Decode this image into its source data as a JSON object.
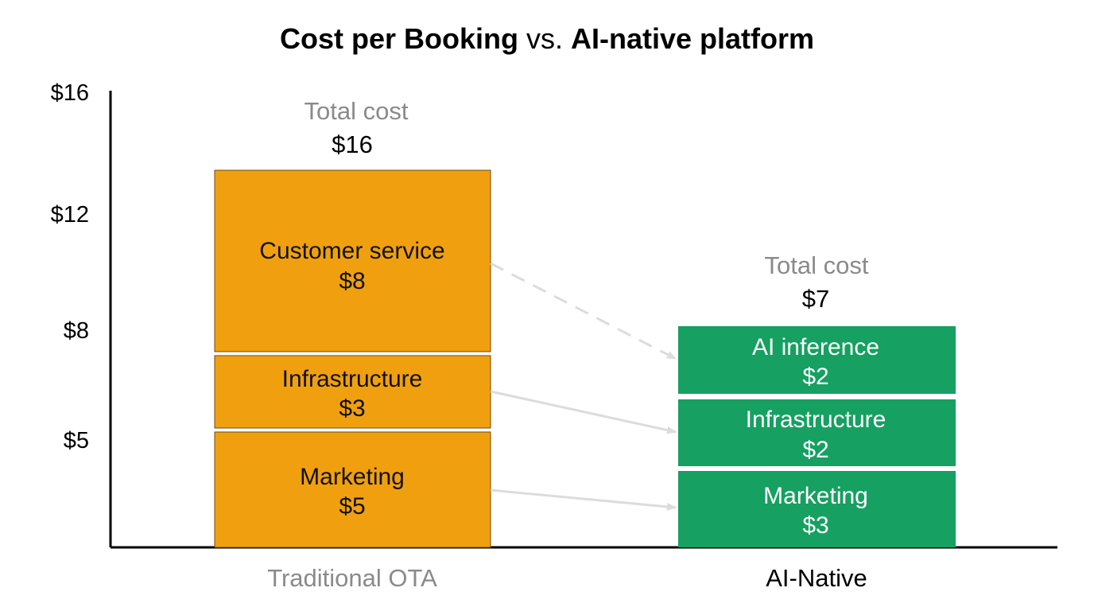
{
  "title": {
    "part1": "Cost per Booking",
    "part2": " vs. ",
    "part3": "AI-native platform"
  },
  "colors": {
    "traditional": "#f0a00f",
    "ai_native": "#16a061",
    "axis": "#000000",
    "arrow": "#dcdcdc",
    "total_label": "#8a8a8a"
  },
  "chart_data": {
    "type": "bar",
    "stacked": true,
    "y_ticks": [
      "$5",
      "$8",
      "$12",
      "$16"
    ],
    "categories": [
      {
        "name": "Traditional OTA",
        "total_label": "Total cost",
        "total_value": "$16",
        "segments": [
          {
            "name": "Marketing",
            "value_label": "$5",
            "value": 5
          },
          {
            "name": "Infrastructure",
            "value_label": "$3",
            "value": 3
          },
          {
            "name": "Customer service",
            "value_label": "$8",
            "value": 8
          }
        ]
      },
      {
        "name": "AI-Native",
        "total_label": "Total cost",
        "total_value": "$7",
        "segments": [
          {
            "name": "Marketing",
            "value_label": "$3",
            "value": 3
          },
          {
            "name": "Infrastructure",
            "value_label": "$2",
            "value": 2
          },
          {
            "name": "AI inference",
            "value_label": "$2",
            "value": 2
          }
        ]
      }
    ],
    "arrows": [
      {
        "from": "Customer service",
        "to": "AI inference",
        "style": "dashed"
      },
      {
        "from": "Infrastructure",
        "to": "Infrastructure",
        "style": "solid"
      },
      {
        "from": "Marketing",
        "to": "Marketing",
        "style": "solid"
      }
    ]
  }
}
